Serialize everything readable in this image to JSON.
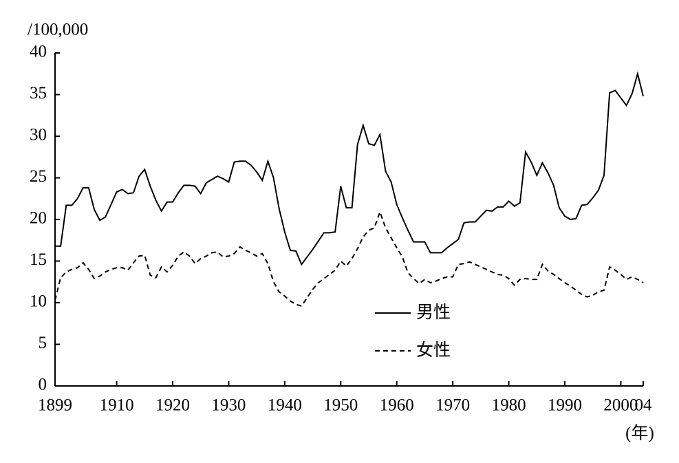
{
  "chart_data": {
    "type": "line",
    "y_unit_label": "/100,000",
    "x_unit_label": "(年)",
    "x": [
      1899,
      1900,
      1901,
      1902,
      1903,
      1904,
      1905,
      1906,
      1907,
      1908,
      1909,
      1910,
      1911,
      1912,
      1913,
      1914,
      1915,
      1916,
      1917,
      1918,
      1919,
      1920,
      1921,
      1922,
      1923,
      1924,
      1925,
      1926,
      1927,
      1928,
      1929,
      1930,
      1931,
      1932,
      1933,
      1934,
      1935,
      1936,
      1937,
      1938,
      1939,
      1940,
      1941,
      1942,
      1943,
      1944,
      1945,
      1946,
      1947,
      1948,
      1949,
      1950,
      1951,
      1952,
      1953,
      1954,
      1955,
      1956,
      1957,
      1958,
      1959,
      1960,
      1961,
      1962,
      1963,
      1964,
      1965,
      1966,
      1967,
      1968,
      1969,
      1970,
      1971,
      1972,
      1973,
      1974,
      1975,
      1976,
      1977,
      1978,
      1979,
      1980,
      1981,
      1982,
      1983,
      1984,
      1985,
      1986,
      1987,
      1988,
      1989,
      1990,
      1991,
      1992,
      1993,
      1994,
      1995,
      1996,
      1997,
      1998,
      1999,
      2000,
      2001,
      2002,
      2003,
      2004
    ],
    "series": [
      {
        "name": "男性",
        "color": "#000000",
        "dash": "solid",
        "values": [
          16.8,
          16.8,
          21.7,
          21.7,
          22.5,
          23.8,
          23.8,
          21.2,
          19.9,
          20.3,
          21.8,
          23.3,
          23.6,
          23.1,
          23.2,
          25.2,
          26.0,
          24.0,
          22.3,
          21.0,
          22.1,
          22.1,
          23.2,
          24.1,
          24.1,
          24.0,
          23.1,
          24.4,
          24.8,
          25.2,
          24.9,
          24.5,
          26.9,
          27.0,
          27.0,
          26.5,
          25.7,
          24.7,
          27.0,
          25.0,
          21.3,
          18.5,
          16.3,
          16.2,
          14.6,
          15.5,
          16.4,
          17.4,
          18.4,
          18.4,
          18.5,
          24.0,
          21.4,
          21.4,
          29.0,
          31.3,
          29.1,
          28.9,
          30.2,
          25.8,
          24.5,
          21.8,
          20.2,
          18.7,
          17.3,
          17.3,
          17.3,
          16.0,
          16.0,
          16.0,
          16.6,
          17.1,
          17.6,
          19.6,
          19.7,
          19.7,
          20.4,
          21.1,
          21.0,
          21.5,
          21.5,
          22.2,
          21.6,
          22.0,
          28.1,
          26.9,
          25.3,
          26.8,
          25.6,
          24.1,
          21.4,
          20.4,
          20.0,
          20.1,
          21.7,
          21.8,
          22.6,
          23.5,
          25.3,
          35.2,
          35.5,
          34.6,
          33.7,
          35.1,
          37.5,
          34.8
        ]
      },
      {
        "name": "女性",
        "color": "#000000",
        "dash": "dashed",
        "values": [
          10.3,
          13.0,
          13.7,
          14.0,
          14.2,
          14.8,
          14.0,
          12.9,
          13.2,
          13.7,
          14.0,
          14.2,
          14.2,
          13.9,
          14.8,
          15.6,
          15.7,
          13.3,
          13.0,
          14.3,
          13.7,
          14.5,
          15.6,
          16.1,
          15.6,
          14.7,
          15.3,
          15.6,
          16.0,
          16.1,
          15.5,
          15.6,
          15.9,
          16.7,
          16.3,
          16.0,
          15.6,
          15.9,
          14.7,
          12.5,
          11.3,
          10.8,
          10.2,
          9.8,
          9.6,
          10.6,
          11.6,
          12.4,
          12.9,
          13.4,
          13.9,
          15.0,
          14.4,
          15.3,
          16.5,
          17.9,
          18.7,
          19.0,
          20.9,
          19.0,
          17.8,
          16.6,
          15.5,
          13.6,
          12.9,
          12.3,
          12.8,
          12.4,
          12.6,
          12.9,
          13.1,
          13.1,
          14.6,
          14.7,
          14.9,
          14.6,
          14.3,
          14.0,
          13.7,
          13.4,
          13.3,
          12.9,
          12.1,
          12.8,
          12.9,
          12.8,
          12.8,
          14.6,
          13.8,
          13.4,
          12.9,
          12.4,
          12.0,
          11.5,
          11.0,
          10.7,
          10.9,
          11.3,
          11.5,
          14.3,
          13.9,
          13.4,
          12.8,
          13.1,
          12.8,
          12.4
        ]
      }
    ],
    "xlim": [
      1899,
      2004
    ],
    "xticks": [
      1899,
      1910,
      1920,
      1930,
      1940,
      1950,
      1960,
      1970,
      1980,
      1990,
      2000,
      {
        "value": 2004,
        "label": "04"
      }
    ],
    "ylim": [
      0,
      40
    ],
    "yticks": [
      0,
      5,
      10,
      15,
      20,
      25,
      30,
      35,
      40
    ],
    "grid": false
  }
}
